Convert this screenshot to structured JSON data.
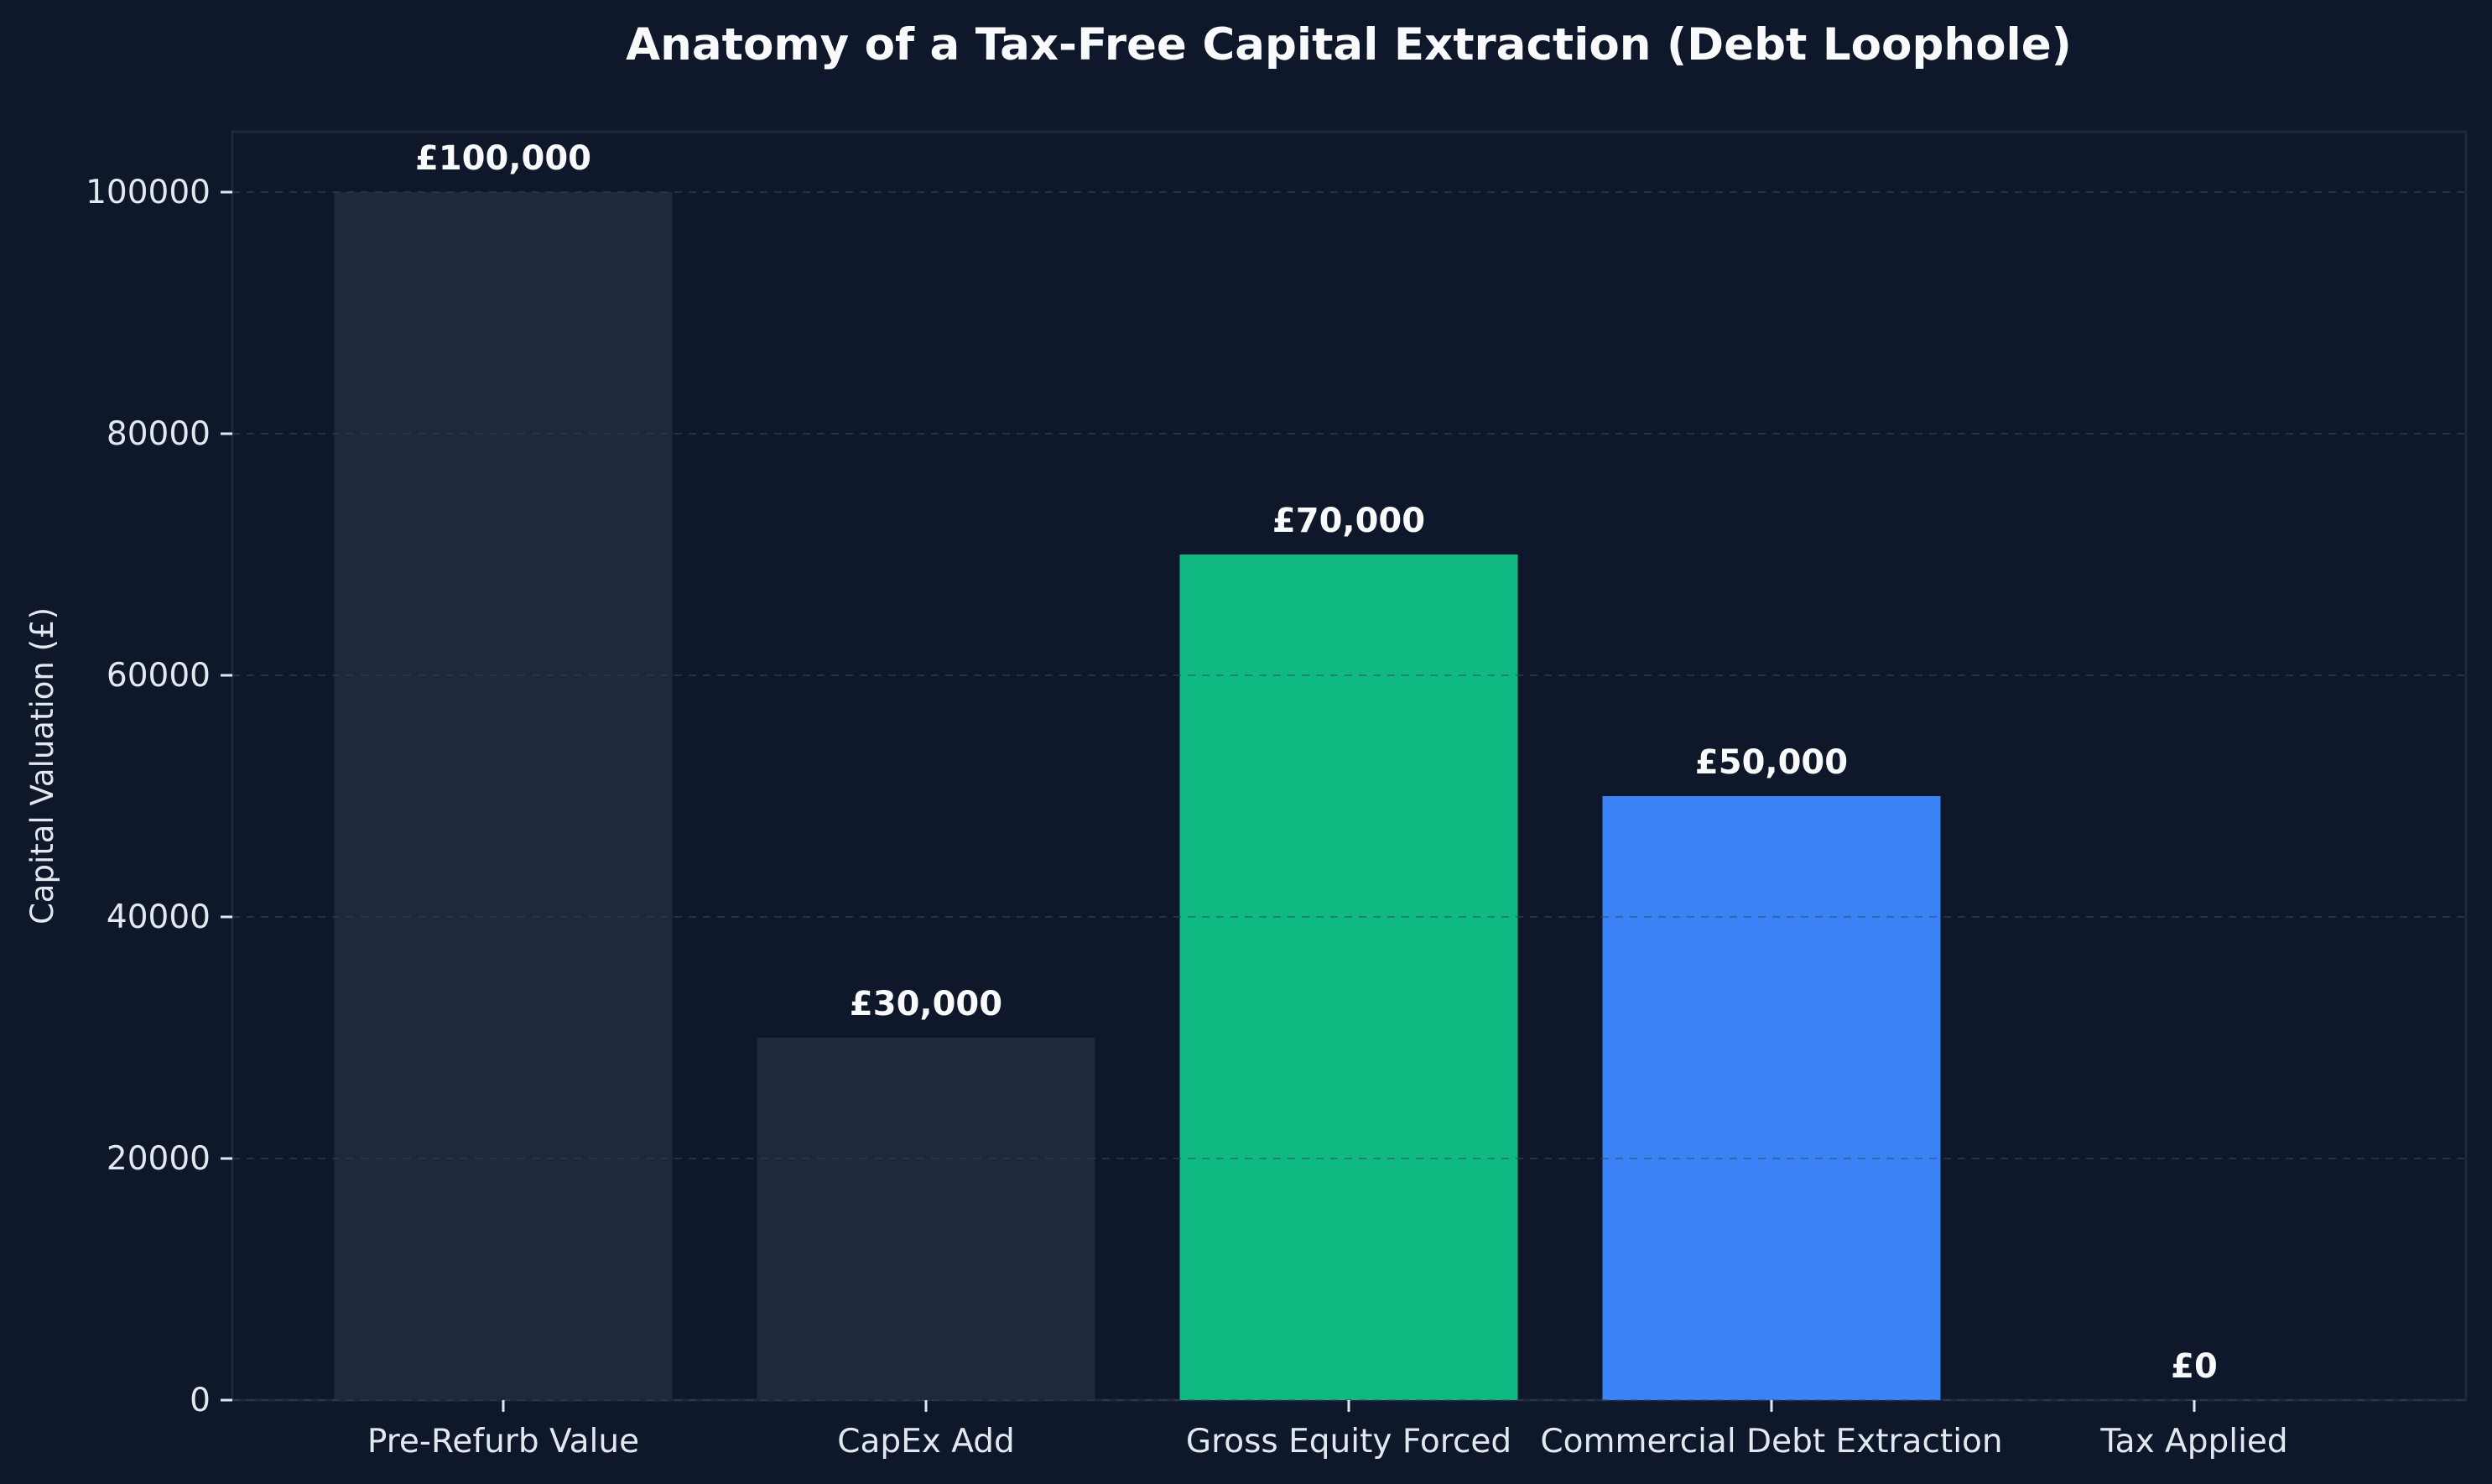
{
  "chart_data": {
    "type": "bar",
    "title": "Anatomy of a Tax-Free Capital Extraction (Debt Loophole)",
    "xlabel": "",
    "ylabel": "Capital Valuation (£)",
    "categories": [
      "Pre-Refurb Value",
      "CapEx Add",
      "Gross Equity Forced",
      "Commercial Debt Extraction",
      "Tax Applied"
    ],
    "values": [
      100000,
      30000,
      70000,
      50000,
      0
    ],
    "value_labels": [
      "£100,000",
      "£30,000",
      "£70,000",
      "£50,000",
      "£0"
    ],
    "bar_colors": [
      "#1e293b",
      "#1e293b",
      "#10b981",
      "#3b82f6",
      "#1e293b"
    ],
    "ylim": [
      0,
      105000
    ],
    "yticks": [
      0,
      20000,
      40000,
      60000,
      80000,
      100000
    ],
    "ytick_labels": [
      "0",
      "20000",
      "40000",
      "60000",
      "80000",
      "100000"
    ],
    "grid": true,
    "grid_style": "dashed",
    "colors": {
      "background": "#0f172a",
      "plot_background": "#0f172a",
      "text": "#e2e8f0",
      "title": "#f8fafc",
      "grid": "#334155",
      "axis": "#1e293b"
    }
  }
}
